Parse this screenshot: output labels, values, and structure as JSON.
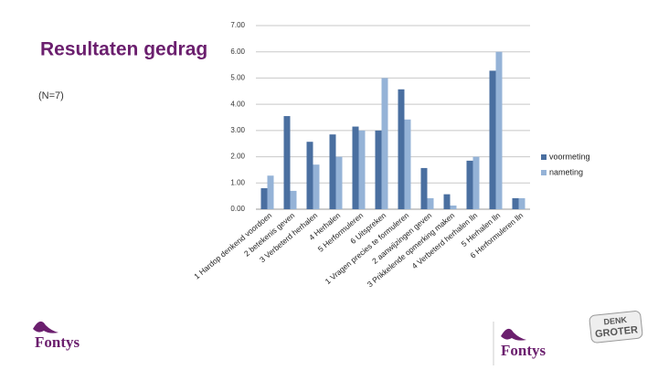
{
  "slide": {
    "title": "Resultaten gedrag",
    "note": "(N=7)",
    "logo_left": "Fontys",
    "logo_right": "Fontys",
    "badge": [
      "DENK",
      "GROTER"
    ]
  },
  "chart_data": {
    "type": "bar",
    "categories": [
      "1 Hardop denkend voordoen",
      "2 betekenis geven",
      "3 Verbeterd herhalen",
      "4 Herhalen",
      "5 Herformuleren",
      "6 Uitspreken",
      "1 Vragen precies te formuleren",
      "2 aanwijzingen geven",
      "3 Prikkelende opmerking maken",
      "4 Verbeterd herhalen lln",
      "5 Herhalen lln",
      "6 Herformuleren lln"
    ],
    "series": [
      {
        "name": "voormeting",
        "color": "#4a6fa0",
        "values": [
          0.8,
          3.55,
          2.57,
          2.85,
          3.15,
          3.0,
          4.57,
          1.57,
          0.57,
          1.85,
          5.28,
          0.42
        ]
      },
      {
        "name": "nameting",
        "color": "#95b3d7",
        "values": [
          1.28,
          0.7,
          1.7,
          2.0,
          3.0,
          5.0,
          3.42,
          0.42,
          0.14,
          2.0,
          6.0,
          0.42
        ]
      }
    ],
    "ylim": [
      0,
      7
    ],
    "yticks": [
      {
        "value": 0,
        "label": "0.00"
      },
      {
        "value": 1,
        "label": "1.00"
      },
      {
        "value": 2,
        "label": "2.00"
      },
      {
        "value": 3,
        "label": "3.00"
      },
      {
        "value": 4,
        "label": "4.00"
      },
      {
        "value": 5,
        "label": "5.00"
      },
      {
        "value": 6,
        "label": "6.00"
      },
      {
        "value": 7,
        "label": "7.00"
      }
    ],
    "grid": true,
    "legend": "right"
  }
}
